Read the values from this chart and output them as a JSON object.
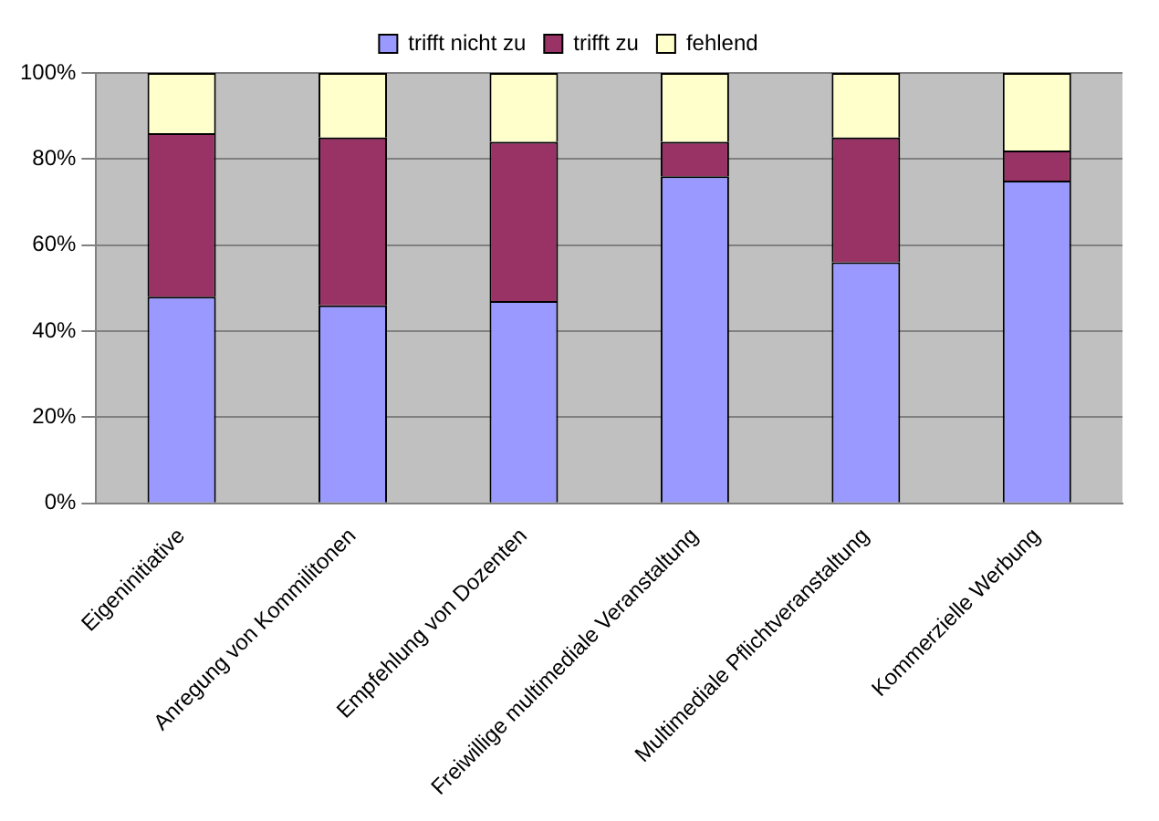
{
  "chart_data": {
    "type": "bar",
    "stacked": true,
    "categories": [
      "Eigeninitiative",
      "Anregung von Kommilitonen",
      "Empfehlung von Dozenten",
      "Freiwillige multimediale Veranstaltung",
      "Multimediale Pflichtveranstaltung",
      "Kommerzielle Werbung"
    ],
    "series": [
      {
        "name": "trifft nicht zu",
        "color": "#9999ff",
        "values": [
          48,
          46,
          47,
          76,
          56,
          75
        ]
      },
      {
        "name": "trifft zu",
        "color": "#993366",
        "values": [
          38,
          39,
          37,
          8,
          29,
          7
        ]
      },
      {
        "name": "fehlend",
        "color": "#ffffcc",
        "values": [
          14,
          15,
          16,
          16,
          15,
          18
        ]
      }
    ],
    "ylim": [
      0,
      100
    ],
    "yticks": [
      {
        "value": 0,
        "label": "0%"
      },
      {
        "value": 20,
        "label": "20%"
      },
      {
        "value": 40,
        "label": "40%"
      },
      {
        "value": 60,
        "label": "60%"
      },
      {
        "value": 80,
        "label": "80%"
      },
      {
        "value": 100,
        "label": "100%"
      }
    ],
    "grid": "y",
    "legend": "top"
  }
}
